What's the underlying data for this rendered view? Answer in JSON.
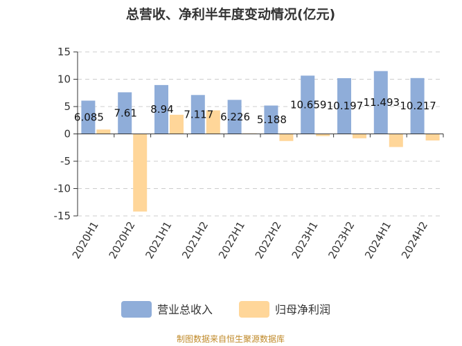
{
  "title": "总营收、净利半年度变动情况(亿元)",
  "source": "制图数据来自恒生聚源数据库",
  "colors": {
    "revenue": "#8fadd9",
    "profit": "#ffd699",
    "axis": "#333333",
    "grid": "#cccccc"
  },
  "chart_data": {
    "type": "bar",
    "title": "总营收、净利半年度变动情况(亿元)",
    "categories": [
      "2020H1",
      "2020H2",
      "2021H1",
      "2021H2",
      "2022H1",
      "2022H2",
      "2023H1",
      "2023H2",
      "2024H1",
      "2024H2"
    ],
    "series": [
      {
        "name": "营业总收入",
        "values": [
          6.085,
          7.61,
          8.94,
          7.117,
          6.226,
          5.188,
          10.659,
          10.197,
          11.493,
          10.217
        ],
        "labels": [
          "6.085",
          "7.61",
          "8.94",
          "7.117",
          "6.226",
          "5.188",
          "10.659",
          "10.197",
          "11.493",
          "10.217"
        ]
      },
      {
        "name": "归母净利润",
        "values": [
          0.8,
          -14.2,
          3.5,
          4.3,
          0.1,
          -1.3,
          -0.4,
          -0.8,
          -2.4,
          -1.2
        ]
      }
    ],
    "yticks": [
      15,
      10,
      5,
      0,
      -5,
      -10,
      -15
    ],
    "ylim": [
      -15,
      15
    ],
    "grid": true,
    "legend_position": "bottom"
  }
}
